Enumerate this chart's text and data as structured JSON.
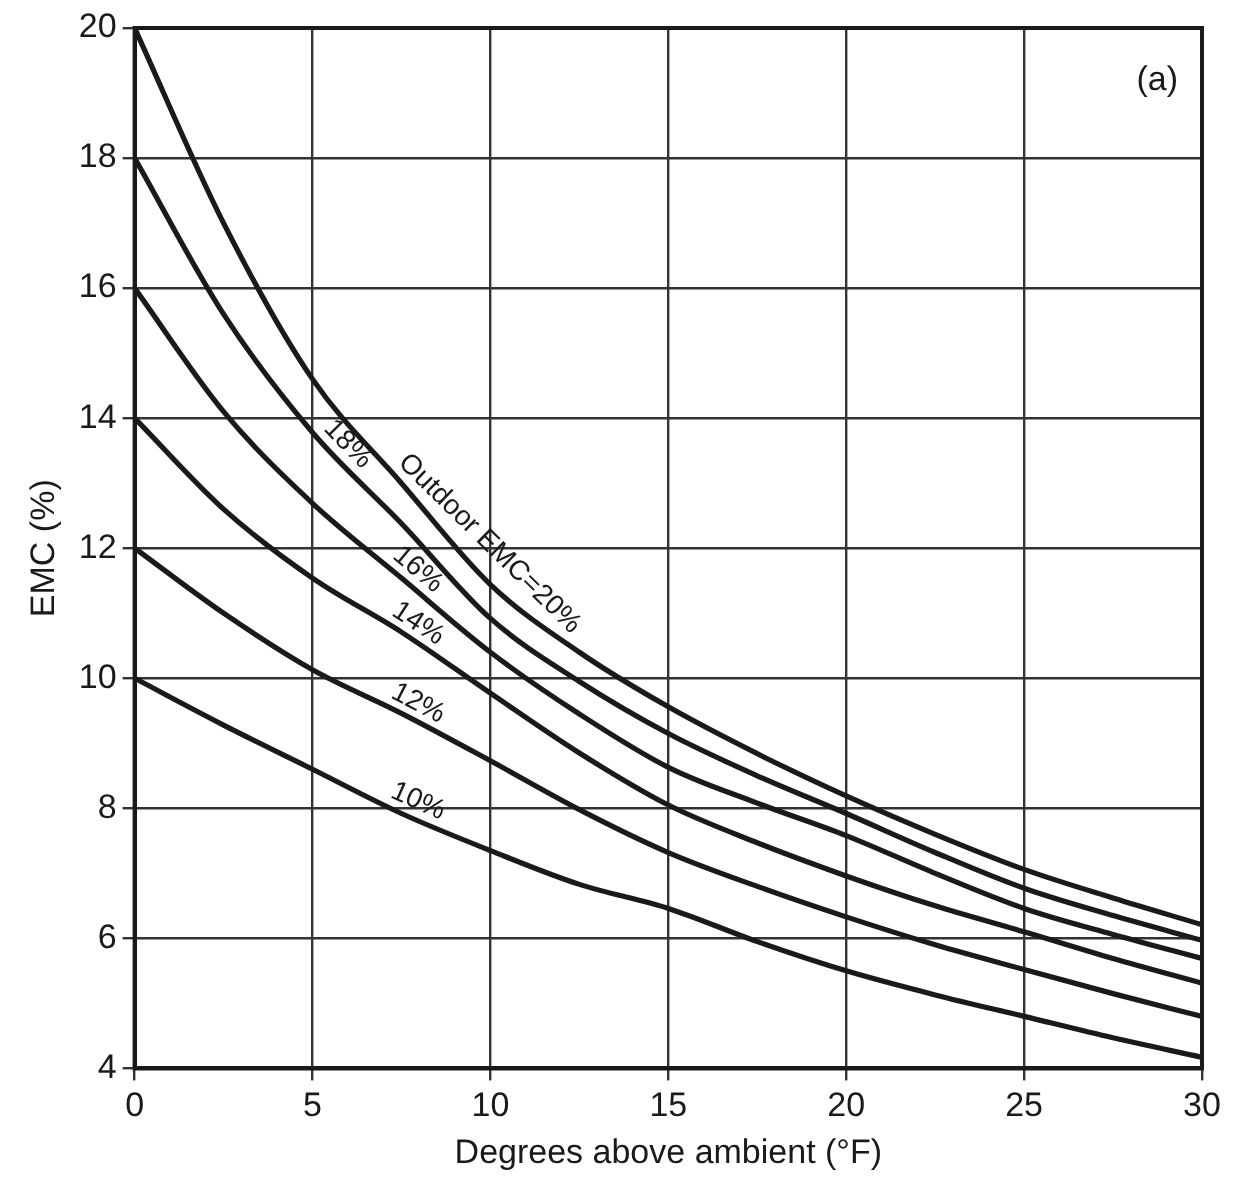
{
  "chart_data": {
    "type": "line",
    "xlabel": "Degrees above ambient (°F)",
    "ylabel": "EMC (%)",
    "x": [
      0,
      2.5,
      5,
      7.5,
      10,
      12.5,
      15,
      17.5,
      20,
      22.5,
      25,
      27.5,
      30
    ],
    "series": [
      {
        "name": "Outdoor EMC=20%",
        "color": "#1a1a1a",
        "values": [
          20,
          17.0,
          14.6,
          13.0,
          11.44,
          10.4,
          9.56,
          8.84,
          8.19,
          7.6,
          7.06,
          6.62,
          6.21
        ]
      },
      {
        "name": "18%",
        "color": "#1a1a1a",
        "values": [
          18,
          15.6,
          13.78,
          12.38,
          10.92,
          9.95,
          9.15,
          8.5,
          7.92,
          7.32,
          6.77,
          6.35,
          5.97
        ]
      },
      {
        "name": "16%",
        "color": "#1a1a1a",
        "values": [
          16,
          14.1,
          12.69,
          11.54,
          10.4,
          9.45,
          8.63,
          8.08,
          7.58,
          7.0,
          6.46,
          6.06,
          5.69
        ]
      },
      {
        "name": "14%",
        "color": "#1a1a1a",
        "values": [
          14,
          12.6,
          11.54,
          10.71,
          9.77,
          8.85,
          8.05,
          7.47,
          6.96,
          6.5,
          6.1,
          5.69,
          5.31
        ]
      },
      {
        "name": "12%",
        "color": "#1a1a1a",
        "values": [
          12,
          11.0,
          10.13,
          9.46,
          8.73,
          7.98,
          7.32,
          6.8,
          6.33,
          5.9,
          5.52,
          5.15,
          4.8
        ]
      },
      {
        "name": "10%",
        "color": "#1a1a1a",
        "values": [
          10,
          9.28,
          8.6,
          7.92,
          7.35,
          6.83,
          6.46,
          5.95,
          5.5,
          5.13,
          4.8,
          4.47,
          4.17
        ]
      }
    ],
    "annotations": [
      "(a)"
    ],
    "xlim": [
      0,
      30
    ],
    "xticks": [
      0,
      5,
      10,
      15,
      20,
      25,
      30
    ],
    "ylim": [
      4,
      20
    ],
    "yticks": [
      4,
      6,
      8,
      10,
      12,
      14,
      16,
      18,
      20
    ],
    "grid": true,
    "legend": false,
    "marker": "none",
    "line_style": "solid"
  }
}
